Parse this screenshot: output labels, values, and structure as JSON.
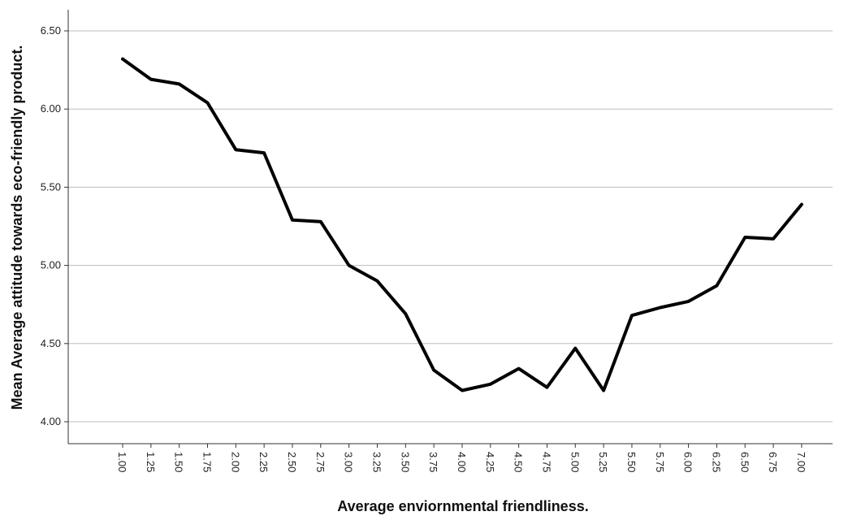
{
  "chart_data": {
    "type": "line",
    "xlabel": "Average enviornmental friendliness.",
    "ylabel": "Mean Average attitude towards eco-friendly product.",
    "ylim": [
      3.9,
      6.65
    ],
    "yticks": [
      "4.00",
      "4.50",
      "5.00",
      "5.50",
      "6.00",
      "6.50"
    ],
    "categories": [
      "1.00",
      "1.25",
      "1.50",
      "1.75",
      "2.00",
      "2.25",
      "2.50",
      "2.75",
      "3.00",
      "3.25",
      "3.50",
      "3.75",
      "4.00",
      "4.25",
      "4.50",
      "4.75",
      "5.00",
      "5.25",
      "5.50",
      "5.75",
      "6.00",
      "6.25",
      "6.50",
      "6.75",
      "7.00"
    ],
    "values": [
      6.32,
      6.19,
      6.16,
      6.04,
      5.74,
      5.72,
      5.29,
      5.28,
      5.0,
      4.9,
      4.69,
      4.33,
      4.2,
      4.24,
      4.34,
      4.22,
      4.47,
      4.2,
      4.68,
      4.73,
      4.77,
      4.87,
      5.18,
      5.17,
      5.39
    ],
    "grid": "horizontal",
    "line_color": "#000000"
  }
}
